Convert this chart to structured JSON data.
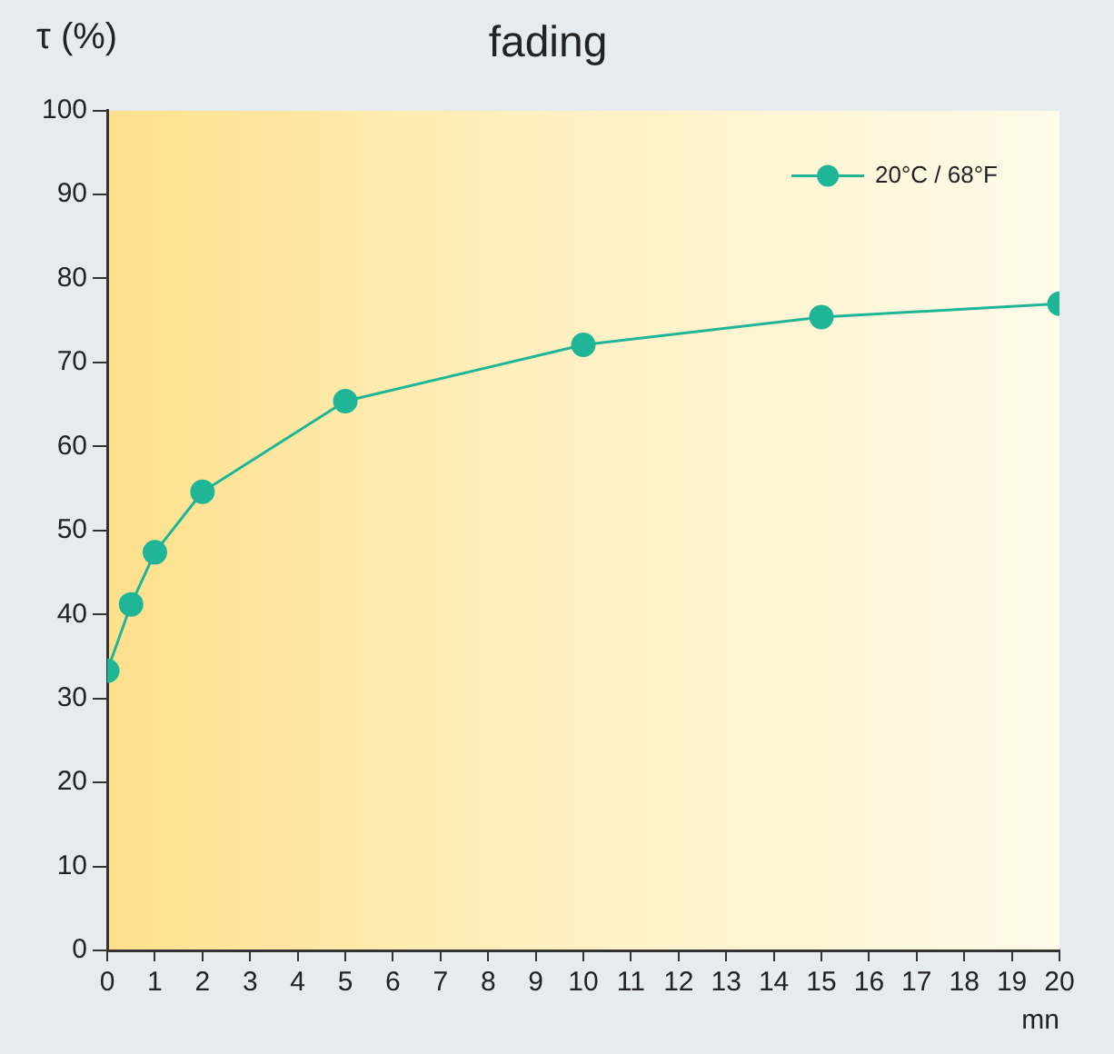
{
  "chart_data": {
    "type": "line",
    "title": "fading",
    "ylabel": "τ (%)",
    "xlabel": "mn",
    "x": [
      0,
      0.5,
      1,
      2,
      5,
      10,
      15,
      20
    ],
    "series": [
      {
        "name": "20°C / 68°F",
        "color": "#1fb597",
        "values": [
          33.3,
          41.2,
          47.4,
          54.6,
          65.4,
          72.1,
          75.4,
          77.0
        ]
      }
    ],
    "xlim": [
      0,
      20
    ],
    "xticks": [
      0,
      1,
      2,
      3,
      4,
      5,
      6,
      7,
      8,
      9,
      10,
      11,
      12,
      13,
      14,
      15,
      16,
      17,
      18,
      19,
      20
    ],
    "ylim": [
      0,
      100
    ],
    "yticks": [
      0,
      10,
      20,
      30,
      40,
      50,
      60,
      70,
      80,
      90,
      100
    ],
    "grid": false,
    "legend": "top right",
    "marker": "circle",
    "line_style": "solid"
  }
}
